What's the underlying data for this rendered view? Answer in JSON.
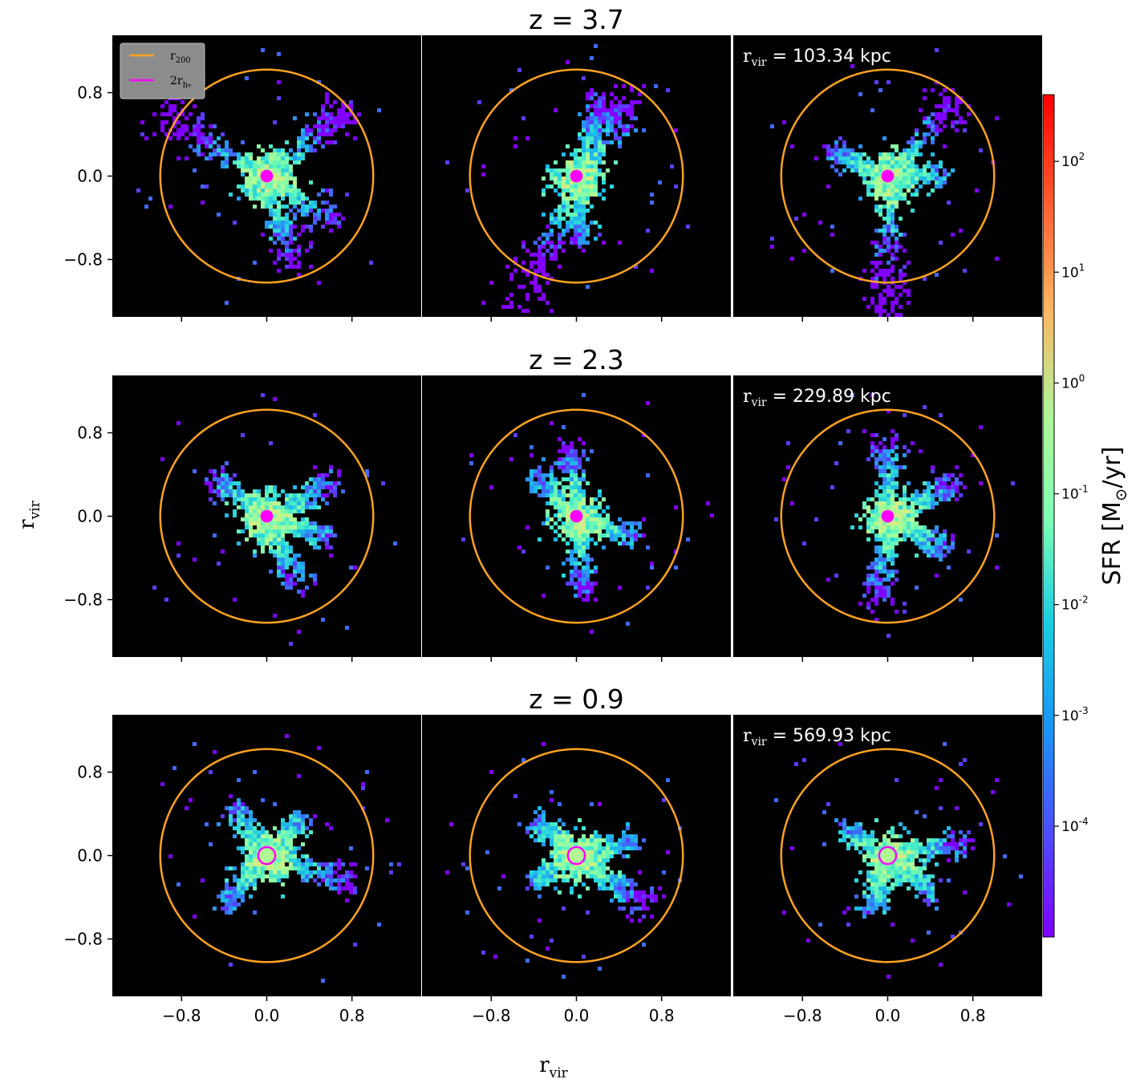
{
  "figure": {
    "xlabel": "r",
    "xlabel_sub": "vir",
    "ylabel": "r",
    "ylabel_sub": "vir",
    "colorbar": {
      "label_prefix": "SFR [M",
      "label_sun": "⊙",
      "label_suffix": "/yr]",
      "scale": "log",
      "range": [
        1e-05,
        400
      ],
      "colormap": "rainbow",
      "ticks": [
        {
          "base": "10",
          "exp": "2",
          "value": 100
        },
        {
          "base": "10",
          "exp": "1",
          "value": 10
        },
        {
          "base": "10",
          "exp": "0",
          "value": 1
        },
        {
          "base": "10",
          "exp": "-1",
          "value": 0.1
        },
        {
          "base": "10",
          "exp": "-2",
          "value": 0.01
        },
        {
          "base": "10",
          "exp": "-3",
          "value": 0.001
        },
        {
          "base": "10",
          "exp": "-4",
          "value": 0.0001
        }
      ]
    },
    "legend": {
      "placement": "upper-left",
      "items": [
        {
          "label": "r",
          "sub": "200",
          "color": "#ffa21f"
        },
        {
          "label": "2r",
          "sub": "h",
          "subsub": "*",
          "color": "#ff00ff"
        }
      ]
    },
    "background": "#000000",
    "circle_color": "#ffa21f",
    "center_color": "#ff00ff"
  },
  "chart_data": {
    "type": "heatmap",
    "axes": {
      "xlim": [
        -1.45,
        1.45
      ],
      "ylim": [
        -1.35,
        1.35
      ],
      "xticks": [
        {
          "value": -0.8,
          "label": "−0.8"
        },
        {
          "value": 0.0,
          "label": "0.0"
        },
        {
          "value": 0.8,
          "label": "0.8"
        }
      ],
      "yticks": [
        {
          "value": 0.8,
          "label": "0.8"
        },
        {
          "value": 0.0,
          "label": "0.0"
        },
        {
          "value": -0.8,
          "label": "−0.8"
        }
      ],
      "grid": false
    },
    "rows": [
      {
        "title": "z = 3.7",
        "rvir_prefix": "r",
        "rvir_sub": "vir",
        "rvir_text": " = 103.34 kpc",
        "r200": 1.0,
        "r_half": 0.025
      },
      {
        "title": "z = 2.3",
        "rvir_prefix": "r",
        "rvir_sub": "vir",
        "rvir_text": " = 229.89 kpc",
        "r200": 1.0,
        "r_half": 0.025
      },
      {
        "title": "z = 0.9",
        "rvir_prefix": "r",
        "rvir_sub": "vir",
        "rvir_text": " = 569.93 kpc",
        "r200": 1.0,
        "r_half": 0.04
      }
    ],
    "panels_per_row": 3
  }
}
